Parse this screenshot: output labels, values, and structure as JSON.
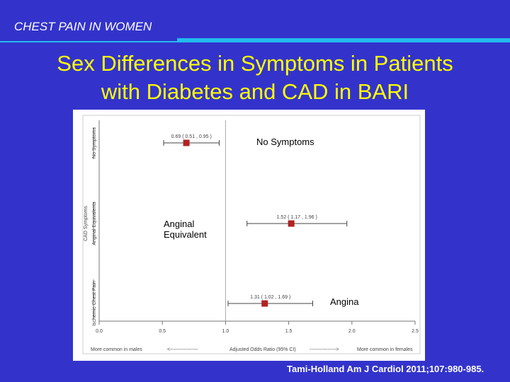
{
  "header": {
    "label": "CHEST PAIN IN WOMEN"
  },
  "title": {
    "line1": "Sex Differences in Symptoms in Patients",
    "line2": "with Diabetes and CAD in BARI"
  },
  "annotations": {
    "no_symptoms": "No Symptoms",
    "anginal_equivalent_line1": "Anginal",
    "anginal_equivalent_line2": "Equivalent",
    "angina": "Angina"
  },
  "citation": "Tami-Holland Am J Cardiol 2011;107:980-985.",
  "colors": {
    "background": "#3333cc",
    "title": "#ffff00",
    "accent_rule": "#22bbee",
    "marker": "#b22222"
  },
  "chart_data": {
    "type": "scatter",
    "subtype": "forest-plot",
    "rows": [
      {
        "label": "No Symptoms",
        "or": 0.69,
        "ci": [
          0.51,
          0.95
        ],
        "text": "0.69 ( 0.51 , 0.95 )"
      },
      {
        "label": "Anginal Equivalents",
        "or": 1.52,
        "ci": [
          1.17,
          1.96
        ],
        "text": "1.52 ( 1.17 , 1.96 )"
      },
      {
        "label": "Ischemic Chest Pain",
        "or": 1.31,
        "ci": [
          1.02,
          1.69
        ],
        "text": "1.31 ( 1.02 , 1.69 )"
      }
    ],
    "group_label": "CAD Symptoms",
    "reference_line": 1.0,
    "xlim": [
      0.0,
      2.5
    ],
    "xticks": [
      "0.0",
      "0.5",
      "1.0",
      "1.5",
      "2.0",
      "2.5"
    ],
    "bottom_labels": {
      "left": "More common in males",
      "left_arrow": "<-----------------",
      "center": "Adjusted Odds Ratio (95% CI)",
      "right_arrow": "---------------->",
      "right": "More common in females"
    }
  }
}
